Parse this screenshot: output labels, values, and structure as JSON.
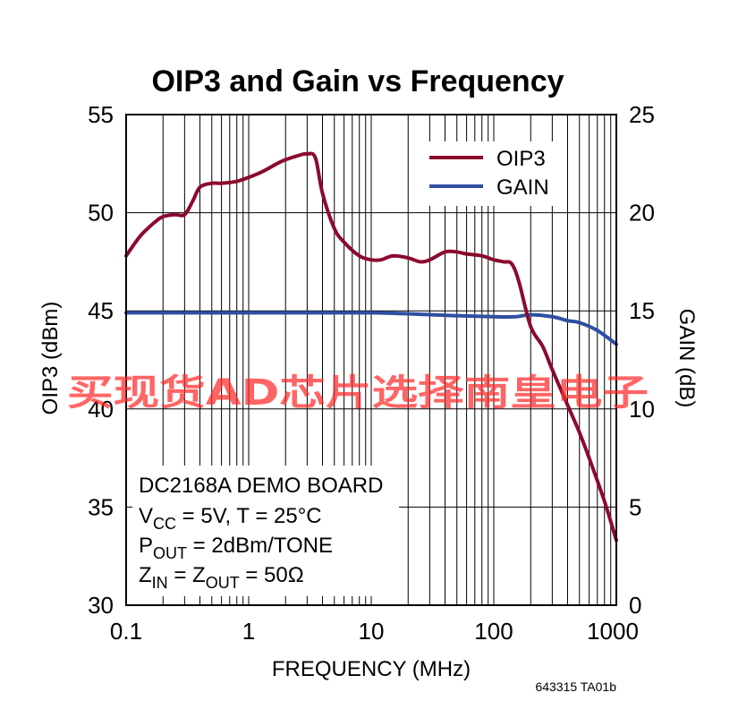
{
  "chart_data": {
    "type": "line",
    "title": "OIP3 and Gain vs Frequency",
    "xlabel": "FREQUENCY (MHz)",
    "ylabel": "OIP3 (dBm)",
    "y2label": "GAIN (dB)",
    "xscale": "log",
    "xlim": [
      0.1,
      1000
    ],
    "ylim": [
      30,
      55
    ],
    "y2lim": [
      0,
      25
    ],
    "xticks": [
      "0.1",
      "1",
      "10",
      "100",
      "1000"
    ],
    "yticks": [
      "30",
      "35",
      "40",
      "45",
      "50",
      "55"
    ],
    "y2ticks": [
      "0",
      "5",
      "10",
      "15",
      "20",
      "25"
    ],
    "grid": true,
    "legend_position": "top-right",
    "series": [
      {
        "name": "OIP3",
        "axis": "left",
        "color": "#8b0a2e",
        "x": [
          0.1,
          0.13,
          0.17,
          0.2,
          0.25,
          0.3,
          0.35,
          0.4,
          0.5,
          0.6,
          0.8,
          1,
          1.3,
          1.7,
          2,
          2.5,
          3,
          3.5,
          4,
          5,
          6,
          8,
          10,
          12,
          15,
          20,
          25,
          30,
          40,
          50,
          60,
          80,
          100,
          120,
          140,
          160,
          200,
          250,
          300,
          400,
          500,
          600,
          800,
          1000
        ],
        "y": [
          47.8,
          48.8,
          49.5,
          49.8,
          49.9,
          49.9,
          50.6,
          51.3,
          51.5,
          51.5,
          51.6,
          51.8,
          52.1,
          52.5,
          52.7,
          52.9,
          53.0,
          52.8,
          51.0,
          49.2,
          48.5,
          47.8,
          47.6,
          47.6,
          47.8,
          47.7,
          47.5,
          47.6,
          48.0,
          48.0,
          47.9,
          47.8,
          47.6,
          47.5,
          47.4,
          46.5,
          44.2,
          43.2,
          42.0,
          40.2,
          38.8,
          37.5,
          35.3,
          33.3
        ]
      },
      {
        "name": "GAIN",
        "axis": "right",
        "color": "#2e4fa1",
        "x": [
          0.1,
          0.2,
          0.5,
          1,
          2,
          5,
          10,
          20,
          50,
          100,
          150,
          200,
          300,
          400,
          500,
          700,
          1000
        ],
        "y": [
          14.9,
          14.9,
          14.9,
          14.9,
          14.9,
          14.9,
          14.9,
          14.85,
          14.75,
          14.7,
          14.7,
          14.8,
          14.7,
          14.5,
          14.4,
          14.0,
          13.3
        ]
      }
    ],
    "annotation": {
      "board": "DC2168A DEMO BOARD",
      "line2": {
        "a": "V",
        "a_sub": "CC",
        "b": " = 5V, T = 25°C"
      },
      "line3": {
        "a": "P",
        "a_sub": "OUT",
        "b": " = 2dBm/TONE"
      },
      "line4": {
        "a": "Z",
        "a_sub": "IN",
        "b": " = Z",
        "b_sub": "OUT",
        "c": " = 50Ω"
      }
    }
  },
  "figure_code": "643315 TA01b",
  "watermark": "买现货AD芯片选择南皇电子"
}
